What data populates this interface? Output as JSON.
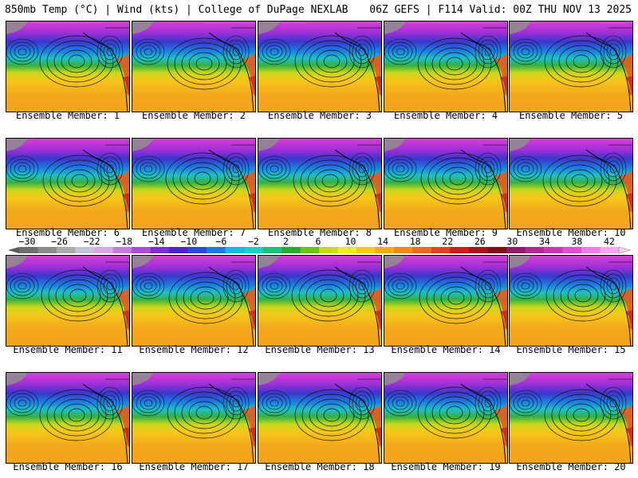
{
  "header": {
    "title_left": "850mb Temp (°C) | Wind (kts) | College of DuPage NEXLAB",
    "title_right": "06Z GEFS | F114 Valid: 00Z THU NOV 13 2025"
  },
  "colorbar": {
    "tick_labels": [
      "−30",
      "−26",
      "−22",
      "−18",
      "−14",
      "−10",
      "−6",
      "−2",
      "2",
      "6",
      "10",
      "14",
      "18",
      "22",
      "26",
      "30",
      "34",
      "38",
      "42"
    ],
    "colors": [
      "#6e6e6e",
      "#8c8c8c",
      "#aaaaaa",
      "#c4c4d8",
      "#d9a6e6",
      "#c77de0",
      "#a84fd9",
      "#7a2ed1",
      "#4b25c9",
      "#2c48d6",
      "#1f7ae0",
      "#1bb6e6",
      "#17d1c2",
      "#1fbf7a",
      "#2aa82f",
      "#6dc21e",
      "#c8d91a",
      "#f2ea19",
      "#f7c91b",
      "#f6a81c",
      "#f08a1d",
      "#ea6a1e",
      "#e0431f",
      "#c81e1e",
      "#a4141e",
      "#7f0f18",
      "#8f1e6a",
      "#b0298f",
      "#cc36b0",
      "#e14ed0",
      "#ee7de4",
      "#f5aaf0"
    ]
  },
  "panels": [
    {
      "label": "Ensemble Member: 1"
    },
    {
      "label": "Ensemble Member: 2"
    },
    {
      "label": "Ensemble Member: 3"
    },
    {
      "label": "Ensemble Member: 4"
    },
    {
      "label": "Ensemble Member: 5"
    },
    {
      "label": "Ensemble Member: 6"
    },
    {
      "label": "Ensemble Member: 7"
    },
    {
      "label": "Ensemble Member: 8"
    },
    {
      "label": "Ensemble Member: 9"
    },
    {
      "label": "Ensemble Member: 10"
    },
    {
      "label": "Ensemble Member: 11"
    },
    {
      "label": "Ensemble Member: 12"
    },
    {
      "label": "Ensemble Member: 13"
    },
    {
      "label": "Ensemble Member: 14"
    },
    {
      "label": "Ensemble Member: 15"
    },
    {
      "label": "Ensemble Member: 16"
    },
    {
      "label": "Ensemble Member: 17"
    },
    {
      "label": "Ensemble Member: 18"
    },
    {
      "label": "Ensemble Member: 19"
    },
    {
      "label": "Ensemble Member: 20"
    }
  ]
}
